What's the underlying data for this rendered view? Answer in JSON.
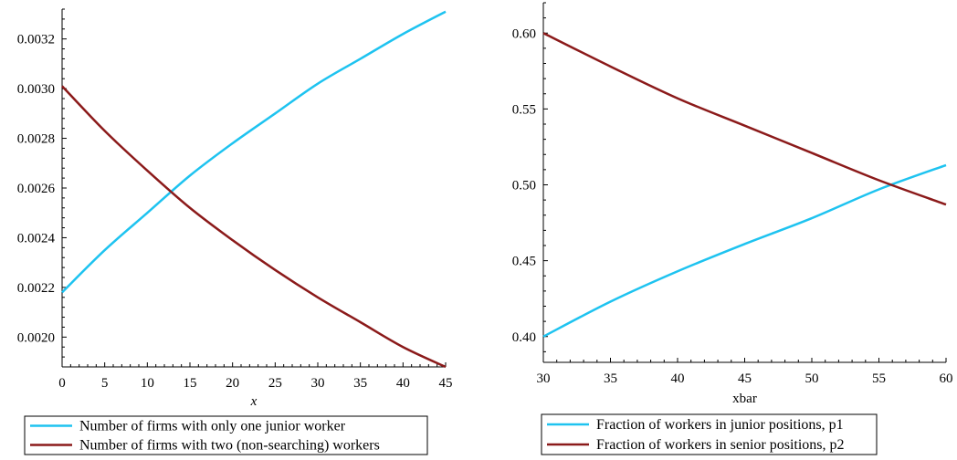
{
  "chart_data": [
    {
      "type": "line",
      "xlabel": "x",
      "ylabel": "",
      "xlim": [
        0,
        45
      ],
      "ylim": [
        0.00188,
        0.00332
      ],
      "x_ticks": [
        0,
        5,
        10,
        15,
        20,
        25,
        30,
        35,
        40,
        45
      ],
      "y_ticks": [
        0.002,
        0.0022,
        0.0024,
        0.0026,
        0.0028,
        0.003,
        0.0032
      ],
      "y_tick_labels": [
        "0.0020",
        "0.0022",
        "0.0024",
        "0.0026",
        "0.0028",
        "0.0030",
        "0.0032"
      ],
      "grid": false,
      "legend_position": "bottom",
      "series": [
        {
          "name": "Number of firms with only one junior worker",
          "color": "#1ec3f0",
          "x": [
            0,
            5,
            10,
            15,
            20,
            25,
            30,
            35,
            40,
            45
          ],
          "y": [
            0.00218,
            0.00235,
            0.0025,
            0.00265,
            0.00278,
            0.0029,
            0.00302,
            0.00312,
            0.00322,
            0.00331
          ]
        },
        {
          "name": "Number of firms with two (non-searching) workers",
          "color": "#8b1a1a",
          "x": [
            0,
            5,
            10,
            15,
            20,
            25,
            30,
            35,
            40,
            45
          ],
          "y": [
            0.00301,
            0.00283,
            0.00267,
            0.00252,
            0.00239,
            0.00227,
            0.00216,
            0.00206,
            0.00196,
            0.00188
          ]
        }
      ]
    },
    {
      "type": "line",
      "xlabel": "xbar",
      "ylabel": "",
      "xlim": [
        30,
        60
      ],
      "ylim": [
        0.38,
        0.62
      ],
      "x_ticks": [
        30,
        35,
        40,
        45,
        50,
        55,
        60
      ],
      "y_ticks": [
        0.4,
        0.45,
        0.5,
        0.55,
        0.6
      ],
      "y_tick_labels": [
        "0.40",
        "0.45",
        "0.50",
        "0.55",
        "0.60"
      ],
      "grid": false,
      "legend_position": "bottom",
      "series": [
        {
          "name": "Fraction of workers in junior positions, p1",
          "color": "#1ec3f0",
          "x": [
            30,
            35,
            40,
            45,
            50,
            55,
            60
          ],
          "y": [
            0.4,
            0.423,
            0.443,
            0.461,
            0.478,
            0.497,
            0.513
          ]
        },
        {
          "name": "Fraction of workers in senior positions, p2",
          "color": "#8b1a1a",
          "x": [
            30,
            35,
            40,
            45,
            50,
            55,
            60
          ],
          "y": [
            0.6,
            0.578,
            0.557,
            0.539,
            0.521,
            0.503,
            0.487
          ]
        }
      ]
    }
  ]
}
